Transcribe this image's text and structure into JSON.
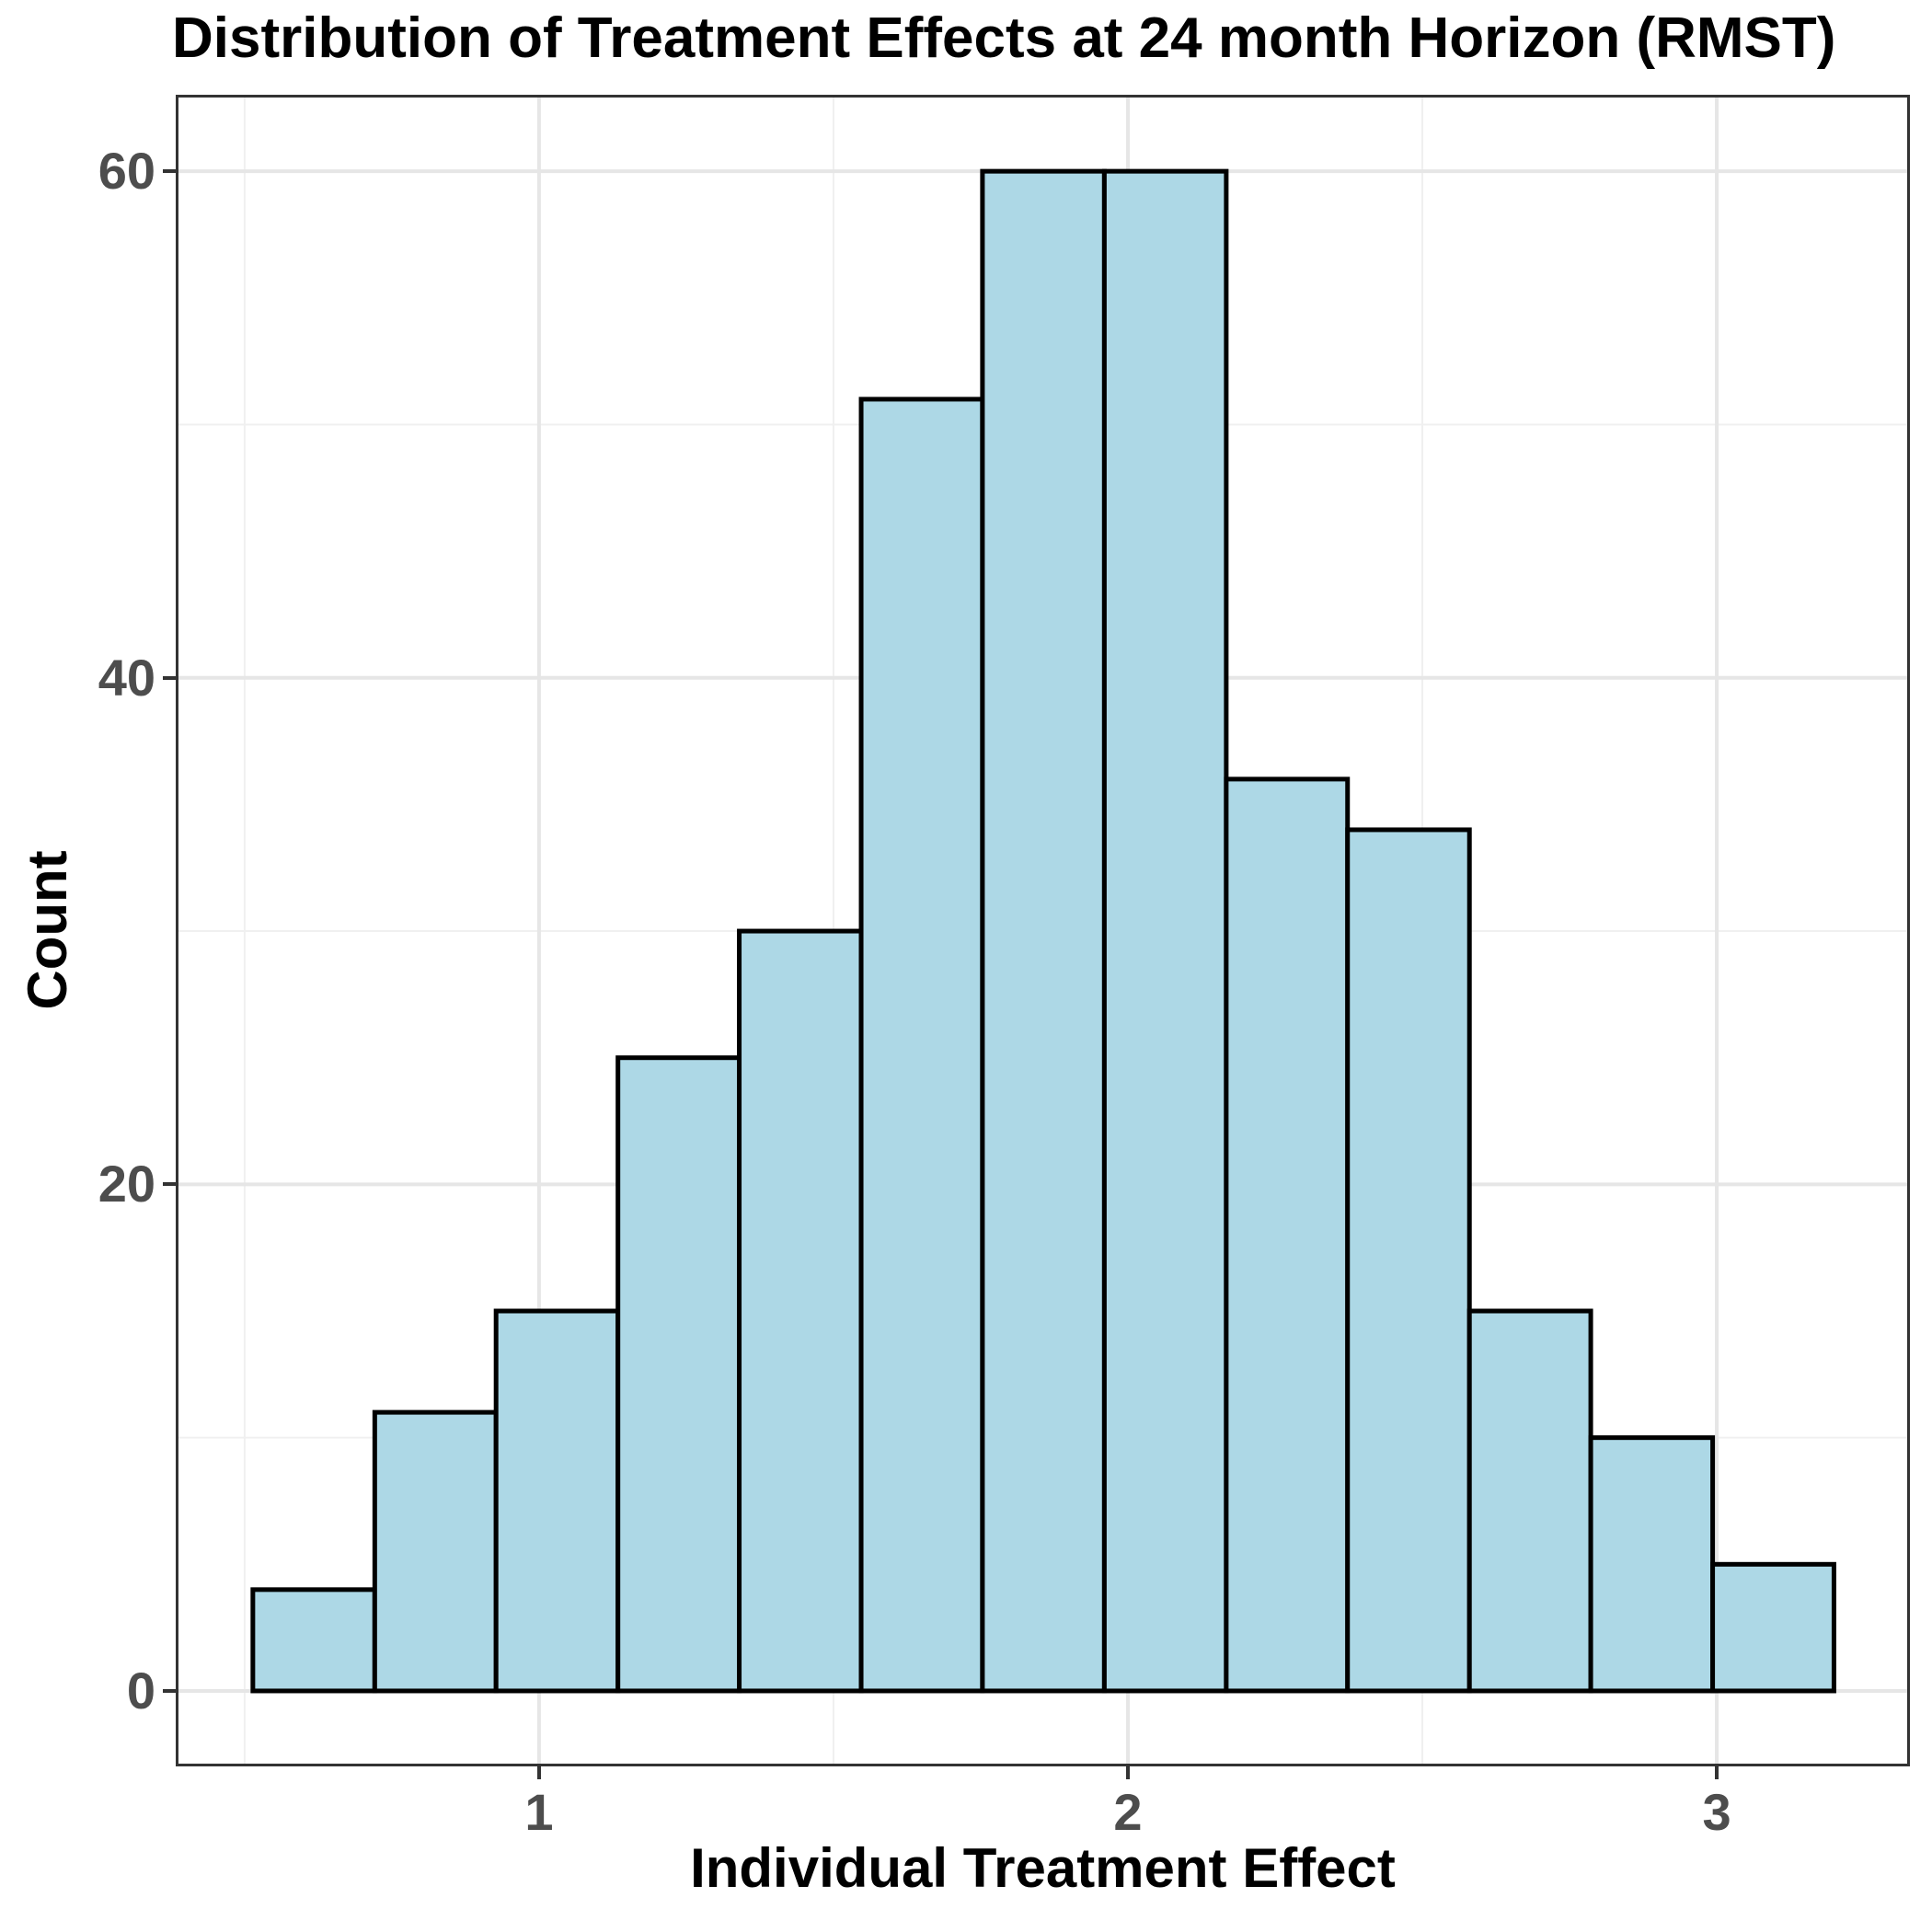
{
  "chart_data": {
    "type": "histogram",
    "title": "Distribution of Treatment Effects at 24 month Horizon (RMST)",
    "xlabel": "Individual Treatment Effect",
    "ylabel": "Count",
    "bin_edges": [
      0.514,
      0.721,
      0.927,
      1.134,
      1.34,
      1.547,
      1.753,
      1.96,
      2.167,
      2.373,
      2.58,
      2.786,
      2.993,
      3.199
    ],
    "counts": [
      4,
      11,
      15,
      25,
      30,
      51,
      60,
      60,
      36,
      34,
      15,
      10,
      5
    ],
    "x_ticks": [
      1,
      2,
      3
    ],
    "y_ticks": [
      0,
      20,
      40,
      60
    ],
    "x_minor_gridlines": [
      0.5,
      1.5,
      2.5
    ],
    "y_minor_gridlines": [
      10,
      30,
      50
    ],
    "xlim": [
      0.383,
      3.328
    ],
    "ylim": [
      -2.98,
      63.02
    ],
    "grid": "on",
    "legend": "none",
    "colors": {
      "bar_fill": "#ADD8E6",
      "bar_stroke": "#000000",
      "grid_major": "#E6E6E6",
      "grid_minor": "#F0F0F0",
      "panel_border": "#333333",
      "panel_background": "#FFFFFF",
      "tick_mark": "#333333",
      "tick_label": "#4D4D4D",
      "text": "#000000",
      "page_background": "#FFFFFF"
    }
  }
}
